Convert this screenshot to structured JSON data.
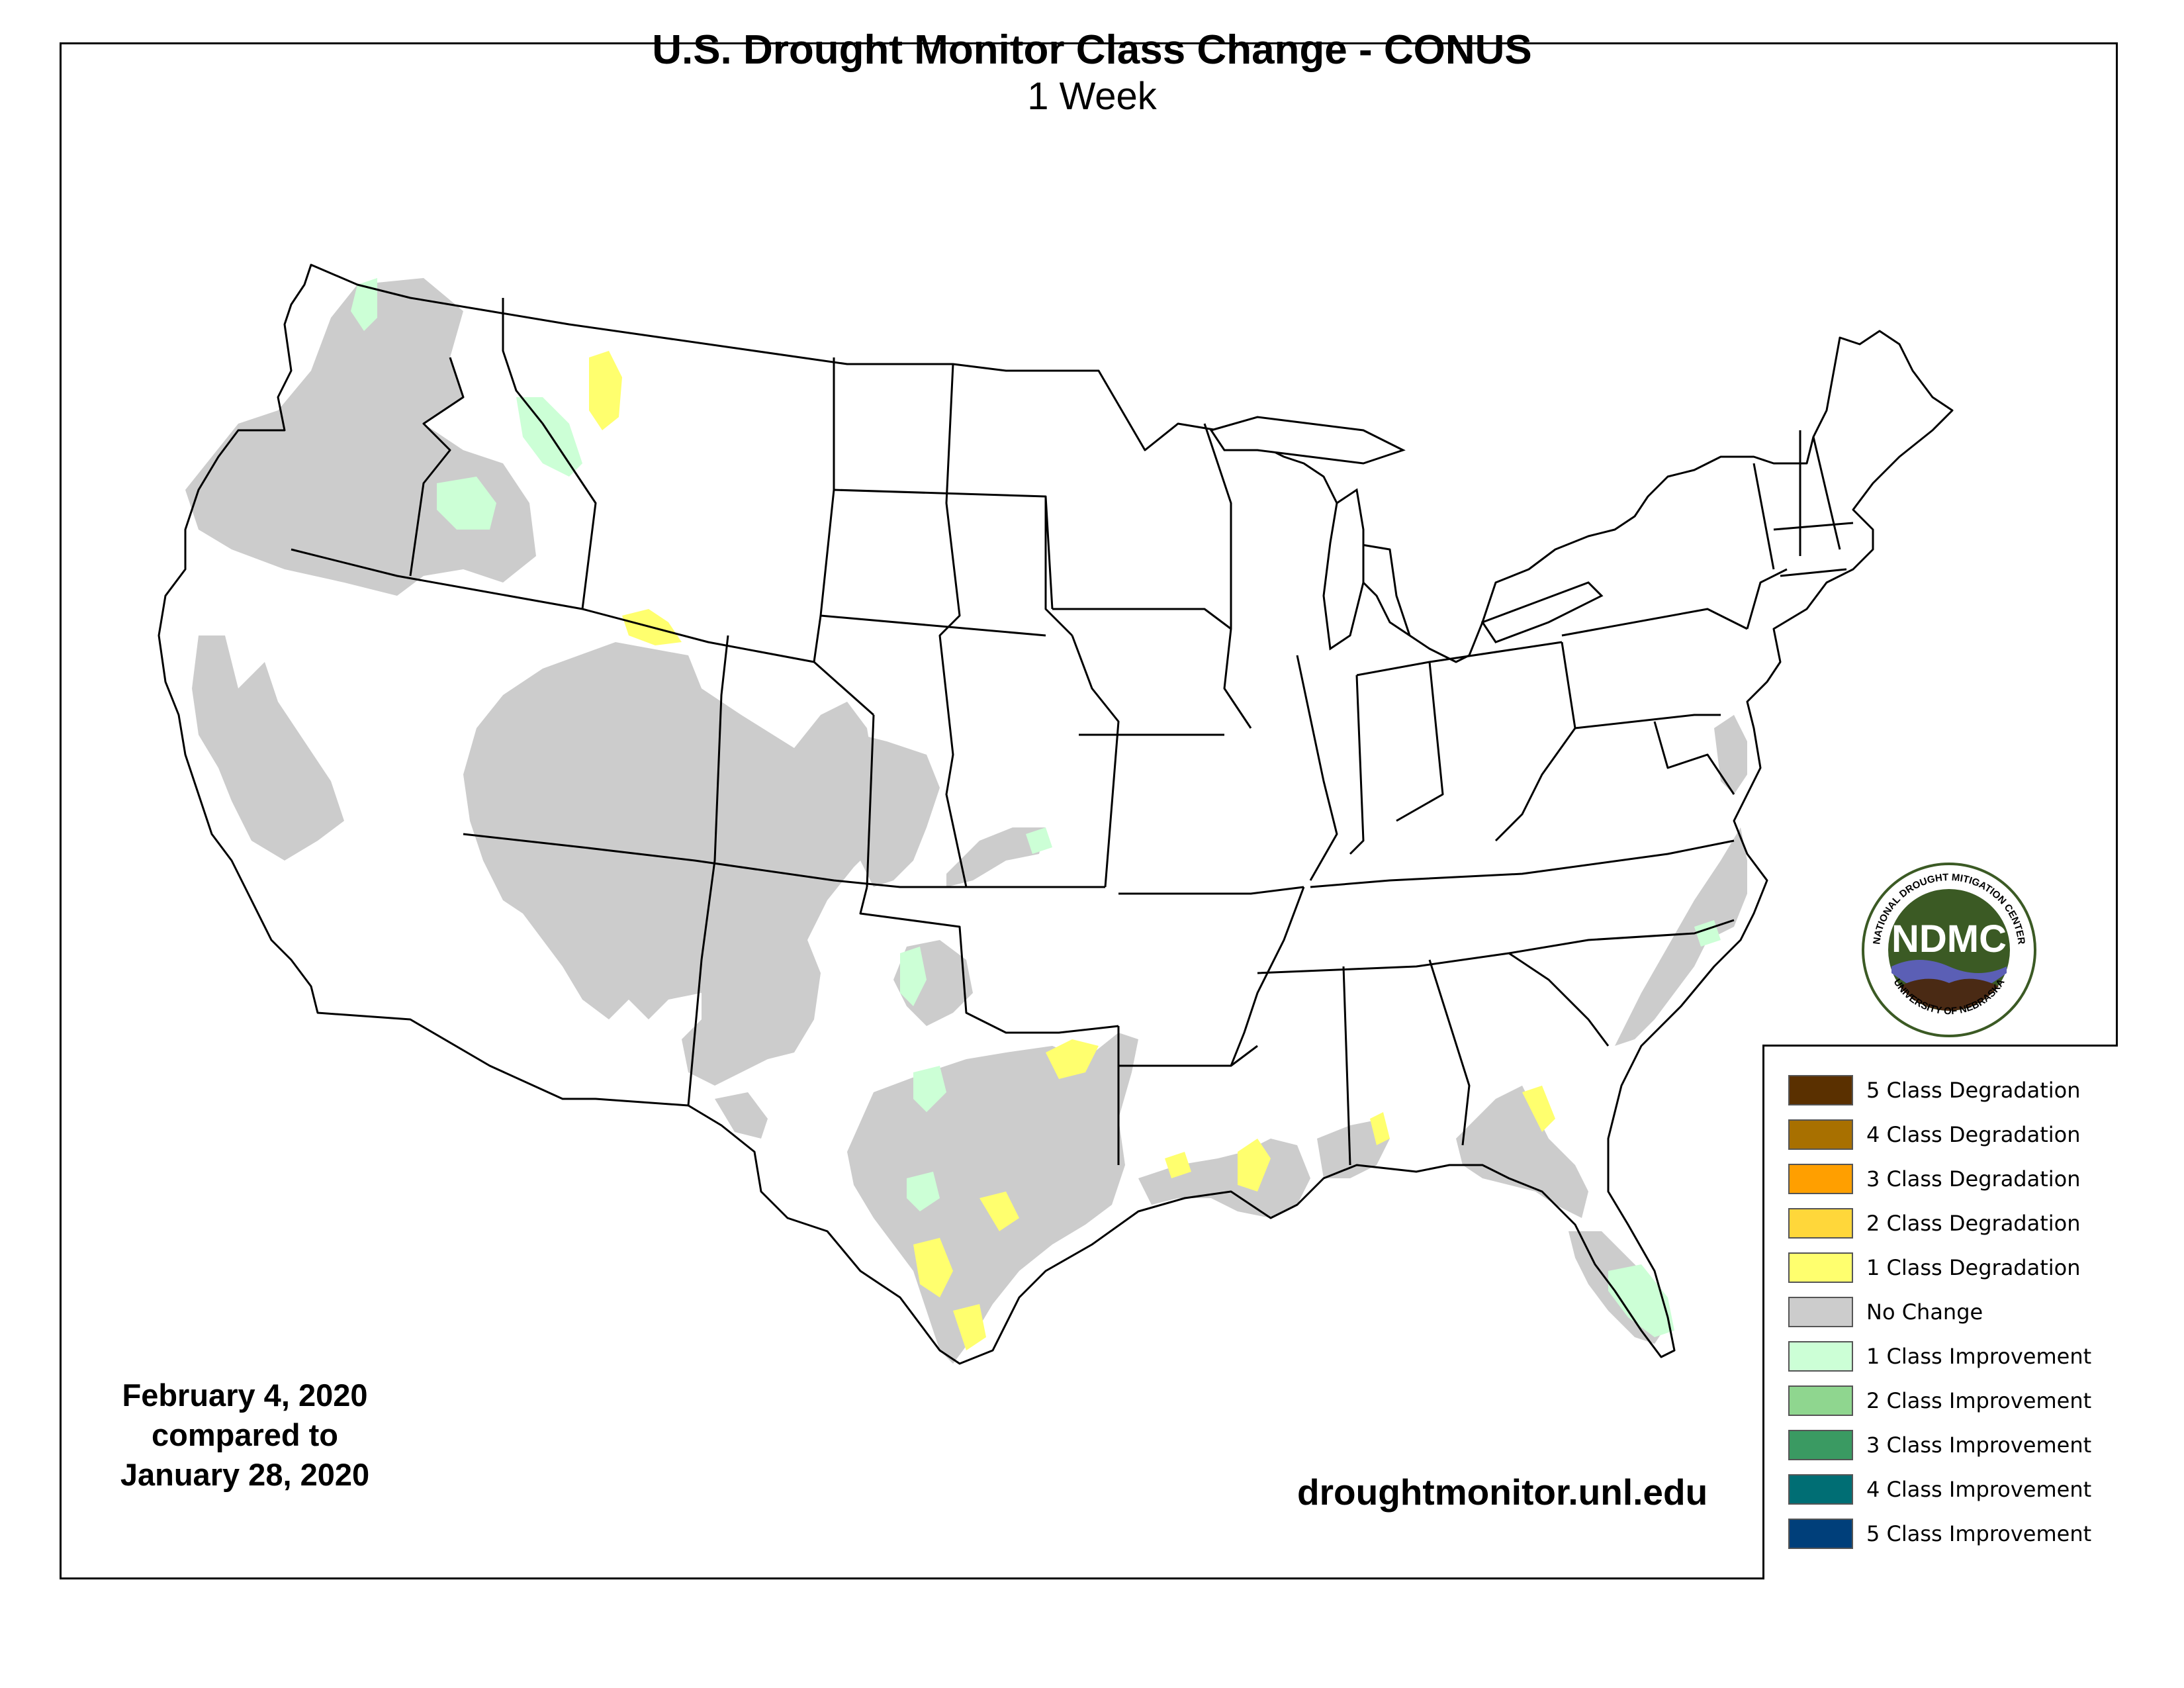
{
  "header": {
    "title": "U.S. Drought Monitor Class Change - CONUS",
    "subtitle": "1 Week"
  },
  "dates": {
    "line1": "February 4, 2020",
    "line2": "compared to",
    "line3": "January 28, 2020"
  },
  "footer": {
    "url": "droughtmonitor.unl.edu"
  },
  "logo": {
    "text": "NDMC",
    "ring_top": "NATIONAL DROUGHT MITIGATION CENTER",
    "ring_bottom": "UNIVERSITY OF NEBRASKA",
    "ring_color": "#3b5a24"
  },
  "legend": {
    "items": [
      {
        "label": "5 Class Degradation",
        "color": "#5a3000"
      },
      {
        "label": "4 Class Degradation",
        "color": "#a87000"
      },
      {
        "label": "3 Class Degradation",
        "color": "#ff9f00"
      },
      {
        "label": "2 Class Degradation",
        "color": "#ffd73a"
      },
      {
        "label": "1 Class Degradation",
        "color": "#ffff6e"
      },
      {
        "label": "No Change",
        "color": "#cccccc"
      },
      {
        "label": "1 Class Improvement",
        "color": "#ccffd6"
      },
      {
        "label": "2 Class Improvement",
        "color": "#8fd68f"
      },
      {
        "label": "3 Class Improvement",
        "color": "#3a9a62"
      },
      {
        "label": "4 Class Improvement",
        "color": "#006e74"
      },
      {
        "label": "5 Class Improvement",
        "color": "#003f7a"
      }
    ]
  },
  "map": {
    "colors": {
      "no_change": "#cccccc",
      "degradation_1": "#ffff6e",
      "improvement_1": "#ccffd6",
      "outline": "#000000"
    }
  }
}
